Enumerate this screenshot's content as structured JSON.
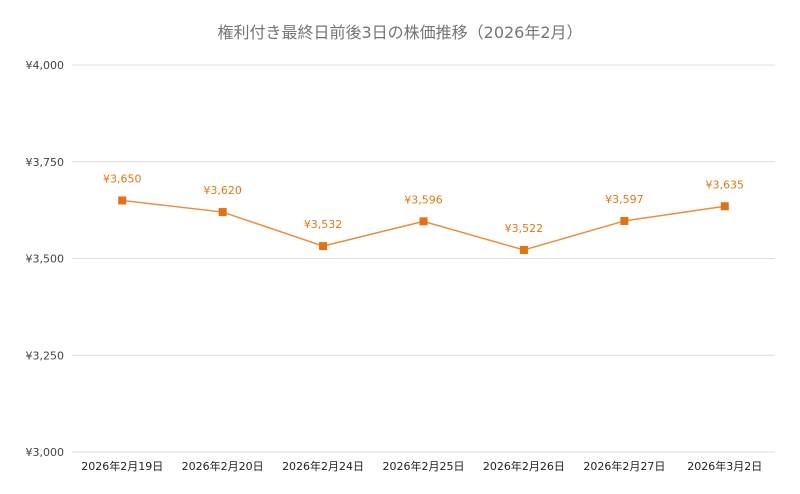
{
  "chart_data": {
    "type": "line",
    "title": "権利付き最終日前後3日の株価推移（2026年2月）",
    "xlabel": "",
    "ylabel": "",
    "categories": [
      "2026年2月19日",
      "2026年2月20日",
      "2026年2月24日",
      "2026年2月25日",
      "2026年2月26日",
      "2026年2月27日",
      "2026年3月2日"
    ],
    "series": [
      {
        "values": [
          3650,
          3620,
          3532,
          3596,
          3522,
          3597,
          3635
        ],
        "labels": [
          "¥3,650",
          "¥3,620",
          "¥3,532",
          "¥3,596",
          "¥3,522",
          "¥3,597",
          "¥3,635"
        ],
        "color": "#e8700f"
      }
    ],
    "ylim": [
      3000,
      4000
    ],
    "yticks": [
      3000,
      3250,
      3500,
      3750,
      4000
    ],
    "ytick_labels": [
      "¥3,000",
      "¥3,250",
      "¥3,500",
      "¥3,750",
      "¥4,000"
    ],
    "grid": true,
    "legend": "none"
  }
}
